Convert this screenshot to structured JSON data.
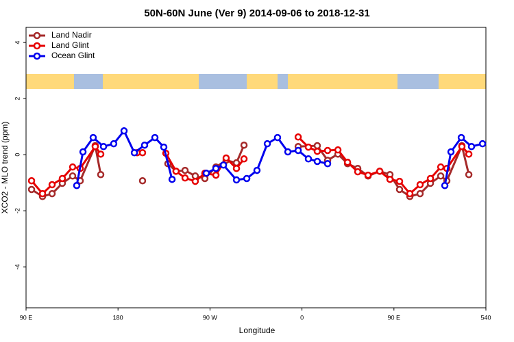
{
  "chart_data": {
    "type": "line",
    "title": "50N-60N June (Ver 9)   2014-09-06 to 2018-12-31",
    "x_label": "Longitude",
    "y_label": "XCO2 - MLO trend (ppm)",
    "xlim": [
      90,
      540
    ],
    "ylim": [
      -5.46,
      4.54
    ],
    "xticks": [
      {
        "value": 90,
        "label": "90 E"
      },
      180,
      {
        "value": 270,
        "label": "90 W"
      },
      {
        "value": 360,
        "label": "0"
      },
      {
        "value": 450,
        "label": "90 E"
      },
      540
    ],
    "yticks": [
      4,
      2,
      0,
      -2,
      -4
    ],
    "legend": "top-left",
    "series": [
      {
        "name": "Land Nadir",
        "color": "#a52a2a",
        "x": [
          95.4,
          106.1,
          115.5,
          125.5,
          135.6,
          143.0,
          157.7,
          163.1,
          null,
          204.0,
          null,
          228.8,
          236.8,
          245.6,
          255.6,
          265.0,
          275.8,
          285.8,
          295.9,
          303.3,
          null,
          356.3,
          375.0,
          385.1,
          395.2,
          404.6,
          414.6,
          424.7,
          436.1,
          446.1,
          455.5,
          465.6,
          475.6,
          485.7,
          495.8,
          501.8,
          516.5,
          523.3
        ],
        "values": [
          -1.24,
          -1.49,
          -1.39,
          -1.02,
          -0.76,
          -0.93,
          0.32,
          -0.71,
          null,
          -0.93,
          null,
          -0.32,
          -0.59,
          -0.56,
          -0.76,
          -0.85,
          -0.44,
          -0.2,
          -0.29,
          0.34,
          null,
          0.29,
          0.32,
          -0.2,
          0.02,
          -0.32,
          -0.49,
          -0.76,
          -0.59,
          -0.71,
          -1.24,
          -1.49,
          -1.39,
          -1.02,
          -0.76,
          -0.93,
          0.32,
          -0.71
        ]
      },
      {
        "name": "Land Glint",
        "color": "#e60000",
        "x": [
          95.4,
          106.1,
          115.5,
          125.5,
          135.6,
          143.0,
          157.7,
          163.1,
          null,
          198.7,
          204.0,
          null,
          226.8,
          236.8,
          245.6,
          255.6,
          265.0,
          275.8,
          285.8,
          295.9,
          303.3,
          null,
          356.3,
          366.3,
          375.0,
          385.1,
          395.2,
          404.6,
          414.6,
          424.7,
          436.1,
          446.1,
          455.5,
          465.6,
          475.6,
          485.7,
          495.8,
          501.8,
          516.5,
          523.3
        ],
        "values": [
          -0.93,
          -1.39,
          -1.07,
          -0.85,
          -0.44,
          -0.49,
          0.29,
          0.02,
          null,
          0.07,
          0.07,
          null,
          0.05,
          -0.59,
          -0.83,
          -0.95,
          -0.66,
          -0.73,
          -0.12,
          -0.49,
          -0.15,
          null,
          0.63,
          0.27,
          0.12,
          0.15,
          0.17,
          -0.27,
          -0.61,
          -0.73,
          -0.59,
          -0.88,
          -0.95,
          -1.39,
          -1.07,
          -0.85,
          -0.44,
          -0.49,
          0.29,
          0.02
        ]
      },
      {
        "name": "Ocean Glint",
        "color": "#0000ee",
        "x": [
          139.6,
          145.7,
          155.7,
          165.8,
          175.8,
          185.9,
          196.0,
          206.0,
          216.1,
          224.8,
          232.9,
          null,
          266.4,
          275.8,
          283.2,
          295.9,
          306.0,
          316.0,
          326.1,
          336.1,
          346.2,
          356.3,
          366.3,
          375.0,
          385.1,
          null,
          499.8,
          505.8,
          515.9,
          525.9,
          536.7
        ],
        "values": [
          -1.1,
          0.1,
          0.61,
          0.29,
          0.39,
          0.85,
          0.07,
          0.34,
          0.61,
          0.27,
          -0.88,
          null,
          -0.66,
          -0.49,
          -0.37,
          -0.9,
          -0.85,
          -0.56,
          0.39,
          0.61,
          0.1,
          0.15,
          -0.15,
          -0.24,
          -0.32,
          null,
          -1.1,
          0.1,
          0.61,
          0.29,
          0.39
        ]
      }
    ]
  }
}
